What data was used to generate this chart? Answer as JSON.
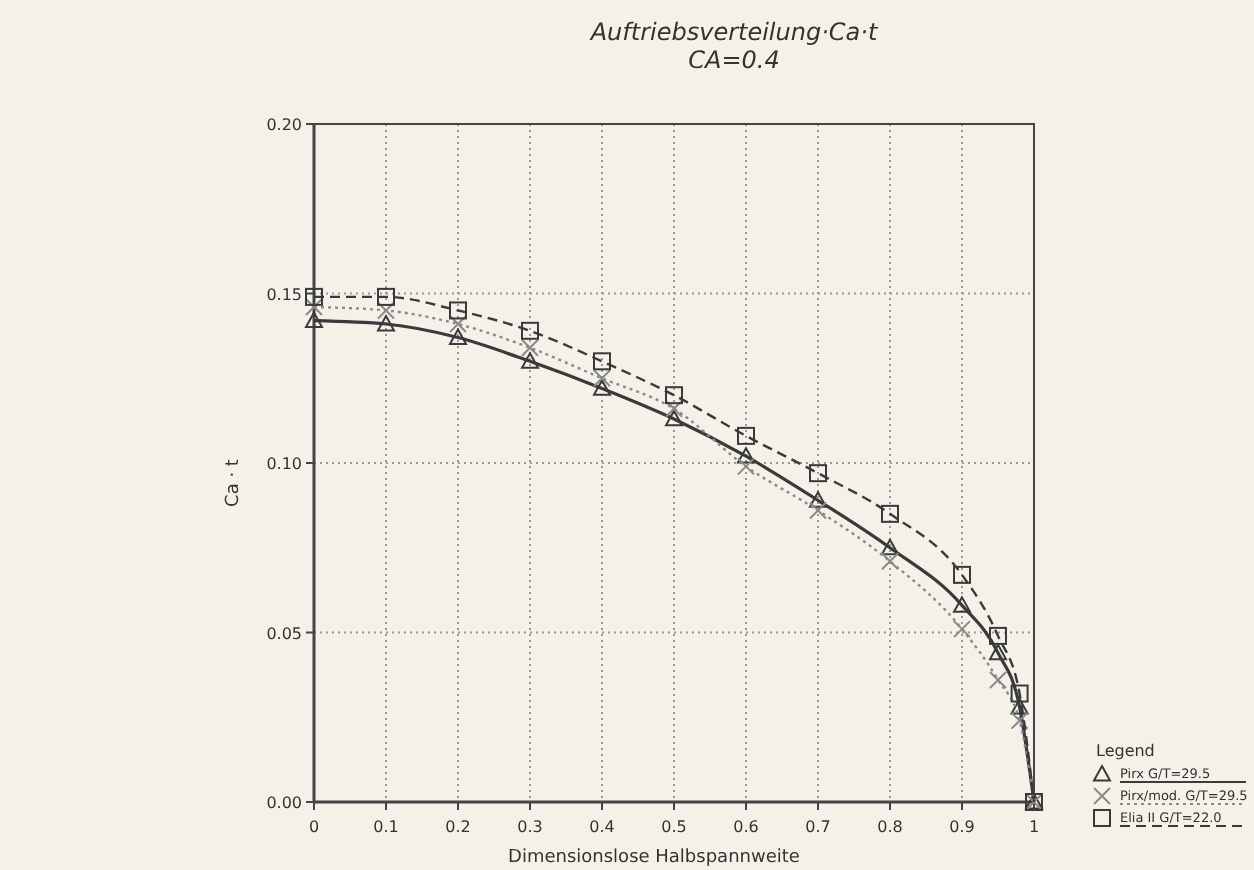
{
  "chart_data": {
    "type": "line",
    "title": "Auftriebsverteilung·Ca·t",
    "subtitle": "CA=0.4",
    "xlabel": "Dimensionslose Halbspannweite",
    "ylabel": "Ca · t",
    "x": [
      0,
      0.1,
      0.2,
      0.3,
      0.4,
      0.5,
      0.6,
      0.7,
      0.8,
      0.9,
      0.95,
      0.98,
      1
    ],
    "series": [
      {
        "name": "Pirx G/T=29.5",
        "color": "#3a3a3a",
        "line_style": "solid",
        "marker": "triangle",
        "values": [
          0.142,
          0.141,
          0.137,
          0.13,
          0.122,
          0.113,
          0.102,
          0.089,
          0.075,
          0.058,
          0.044,
          0.028,
          0
        ]
      },
      {
        "name": "Pirx/mod. G/T=29.5",
        "color": "#8a8a8a",
        "line_style": "dotted",
        "marker": "cross",
        "values": [
          0.146,
          0.145,
          0.141,
          0.134,
          0.125,
          0.116,
          0.099,
          0.086,
          0.071,
          0.051,
          0.036,
          0.024,
          0
        ]
      },
      {
        "name": "Elia II G/T=22.0",
        "color": "#3a3a3a",
        "line_style": "dashed",
        "marker": "square",
        "values": [
          0.149,
          0.149,
          0.145,
          0.139,
          0.13,
          0.12,
          0.108,
          0.097,
          0.085,
          0.067,
          0.049,
          0.032,
          0
        ]
      }
    ],
    "xlim": [
      0,
      1
    ],
    "xticks": [
      0,
      0.1,
      0.2,
      0.3,
      0.4,
      0.5,
      0.6,
      0.7,
      0.8,
      0.9,
      1
    ],
    "ylim": [
      0,
      0.2
    ],
    "yticks": [
      {
        "value": 0,
        "label": "0.00"
      },
      {
        "value": 0.05,
        "label": "0.05"
      },
      {
        "value": 0.1,
        "label": "0.10"
      },
      {
        "value": 0.15,
        "label": "0.15"
      },
      {
        "value": 0.2,
        "label": "0.20"
      }
    ],
    "grid": true,
    "legend": "bottom right",
    "legend_title": "Legend"
  }
}
